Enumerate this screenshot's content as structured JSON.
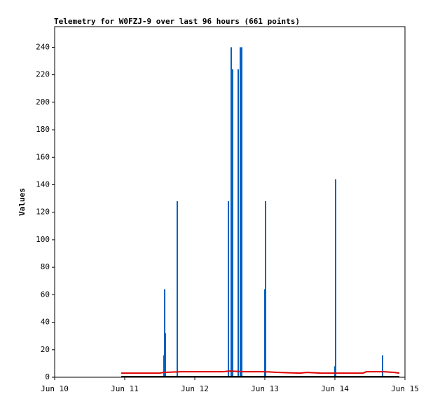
{
  "chart_data": {
    "type": "line",
    "title": "Telemetry for W0FZJ-9 over last 96 hours (661 points)",
    "ylabel": "Values",
    "xlim": [
      0,
      5
    ],
    "ylim": [
      0,
      255
    ],
    "xticks": [
      {
        "value": 0,
        "label": "Jun 10"
      },
      {
        "value": 1,
        "label": "Jun 11"
      },
      {
        "value": 2,
        "label": "Jun 12"
      },
      {
        "value": 3,
        "label": "Jun 13"
      },
      {
        "value": 4,
        "label": "Jun 14"
      },
      {
        "value": 5,
        "label": "Jun 15"
      }
    ],
    "yticks": [
      0,
      20,
      40,
      60,
      80,
      100,
      120,
      140,
      160,
      180,
      200,
      220,
      240
    ],
    "series": [
      {
        "color": "#0060c0",
        "mark": "impulse",
        "x": [
          1.56,
          1.57,
          1.58,
          1.75,
          2.48,
          2.52,
          2.54,
          2.62,
          2.65,
          2.67,
          3.0,
          3.01,
          4.0,
          4.01,
          4.68
        ],
        "values": [
          16,
          64,
          32,
          128,
          128,
          240,
          224,
          224,
          240,
          240,
          64,
          128,
          8,
          144,
          16
        ]
      },
      {
        "color": "#e00000",
        "mark": "line",
        "x": [
          0.95,
          1.5,
          1.55,
          1.8,
          2.4,
          2.5,
          2.7,
          3.0,
          3.2,
          3.5,
          3.6,
          3.8,
          4.0,
          4.2,
          4.4,
          4.45,
          4.7,
          4.85,
          4.92
        ],
        "values": [
          3,
          3,
          3.5,
          4,
          4,
          4.5,
          4,
          4,
          3.5,
          3,
          3.5,
          3,
          3,
          3,
          3,
          4,
          4,
          3.5,
          3
        ]
      },
      {
        "color": "#000000",
        "mark": "line",
        "x": [
          0.95,
          4.92
        ],
        "values": [
          0.5,
          0.5
        ]
      }
    ]
  }
}
